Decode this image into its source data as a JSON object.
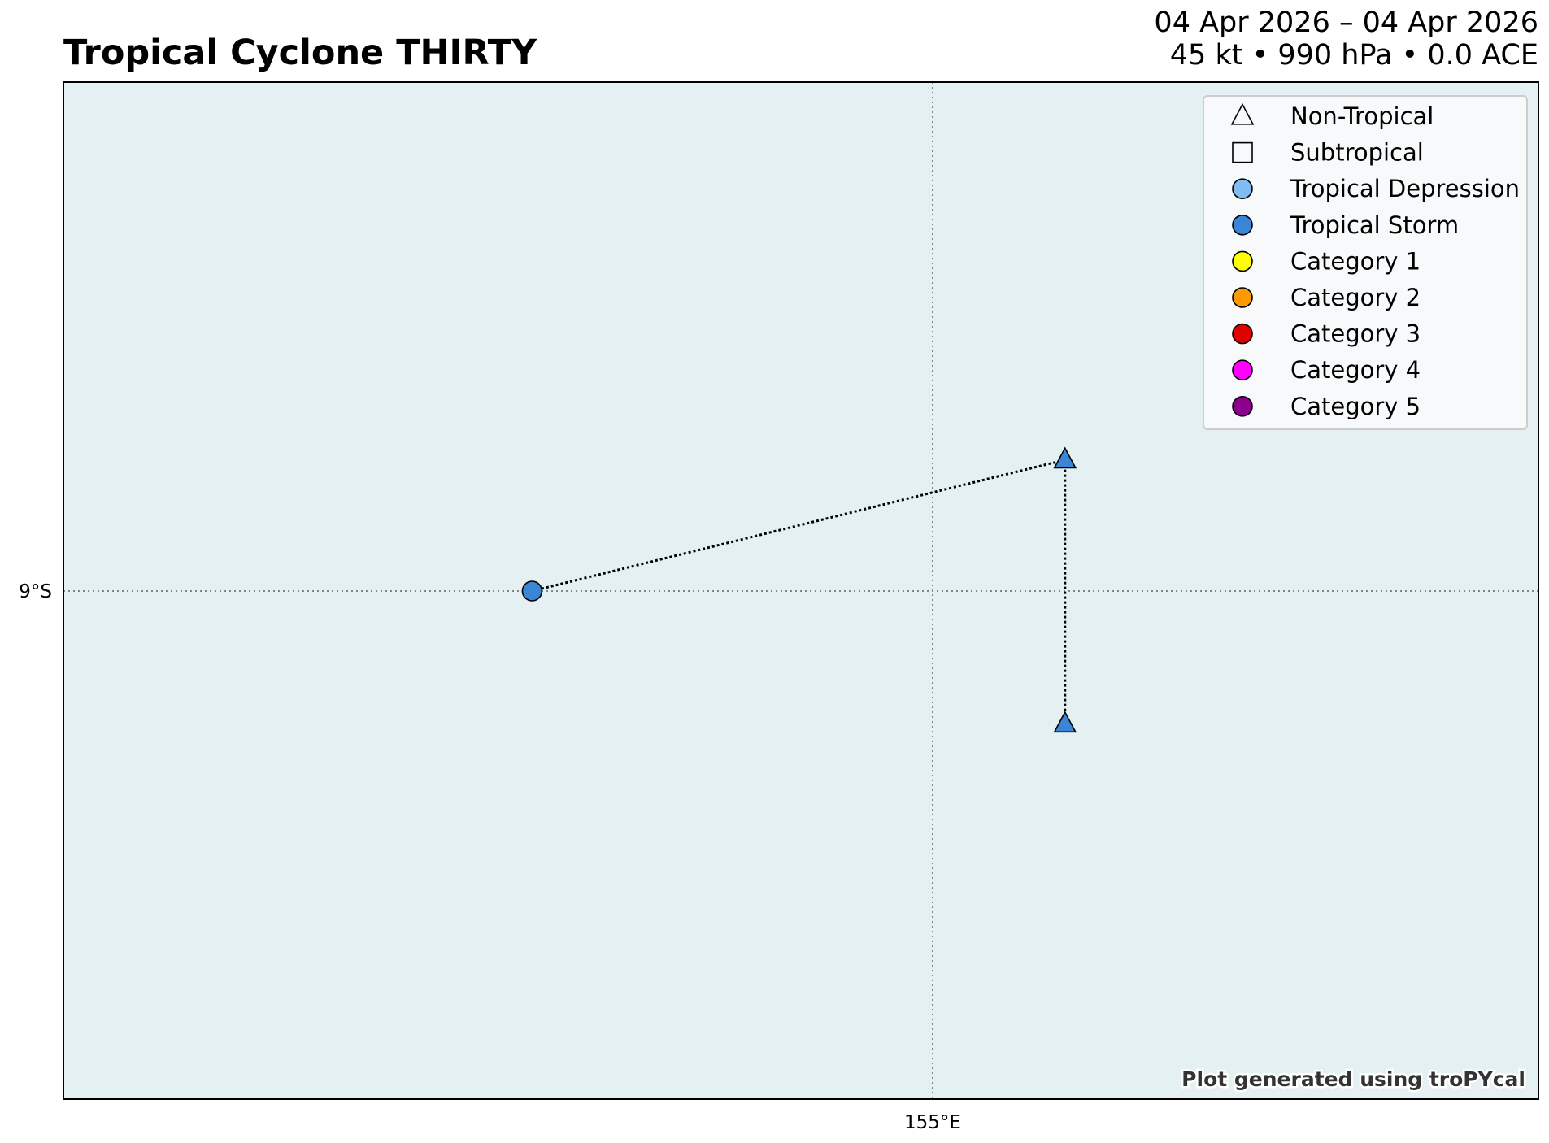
{
  "title": "Tropical Cyclone THIRTY",
  "subtitle": {
    "dates": "04 Apr 2026 – 04 Apr 2026",
    "stats": "45 kt • 990 hPa • 0.0 ACE"
  },
  "credit": "Plot generated using troPYcal",
  "colors": {
    "ocean": "#e4f0f2",
    "gridline": "#7a8a8c",
    "track_line": "#000000",
    "tropical_storm": "#3a85d6"
  },
  "map_data": {
    "x_ticks": [
      {
        "value": 155,
        "label": "155°E"
      }
    ],
    "y_ticks": [
      {
        "value": -9,
        "label": "9°S"
      }
    ],
    "track": [
      {
        "lon": 152.73,
        "lat": -9.0,
        "type": "Tropical Storm",
        "marker": "circle"
      },
      {
        "lon": 155.75,
        "lat": -8.26,
        "type": "Non-Tropical",
        "marker": "triangle",
        "color": "#3a85d6"
      },
      {
        "lon": 155.75,
        "lat": -9.75,
        "type": "Non-Tropical",
        "marker": "triangle",
        "color": "#3a85d6"
      }
    ]
  },
  "legend": {
    "position": "top-right",
    "items": [
      {
        "label": "Non-Tropical",
        "shape": "triangle",
        "fill": "none"
      },
      {
        "label": "Subtropical",
        "shape": "square",
        "fill": "none"
      },
      {
        "label": "Tropical Depression",
        "shape": "circle",
        "fill": "#80bcf2"
      },
      {
        "label": "Tropical Storm",
        "shape": "circle",
        "fill": "#3a85d6"
      },
      {
        "label": "Category 1",
        "shape": "circle",
        "fill": "#ffff00"
      },
      {
        "label": "Category 2",
        "shape": "circle",
        "fill": "#ff9900"
      },
      {
        "label": "Category 3",
        "shape": "circle",
        "fill": "#e00000"
      },
      {
        "label": "Category 4",
        "shape": "circle",
        "fill": "#ff00ff"
      },
      {
        "label": "Category 5",
        "shape": "circle",
        "fill": "#8a008a"
      }
    ]
  }
}
